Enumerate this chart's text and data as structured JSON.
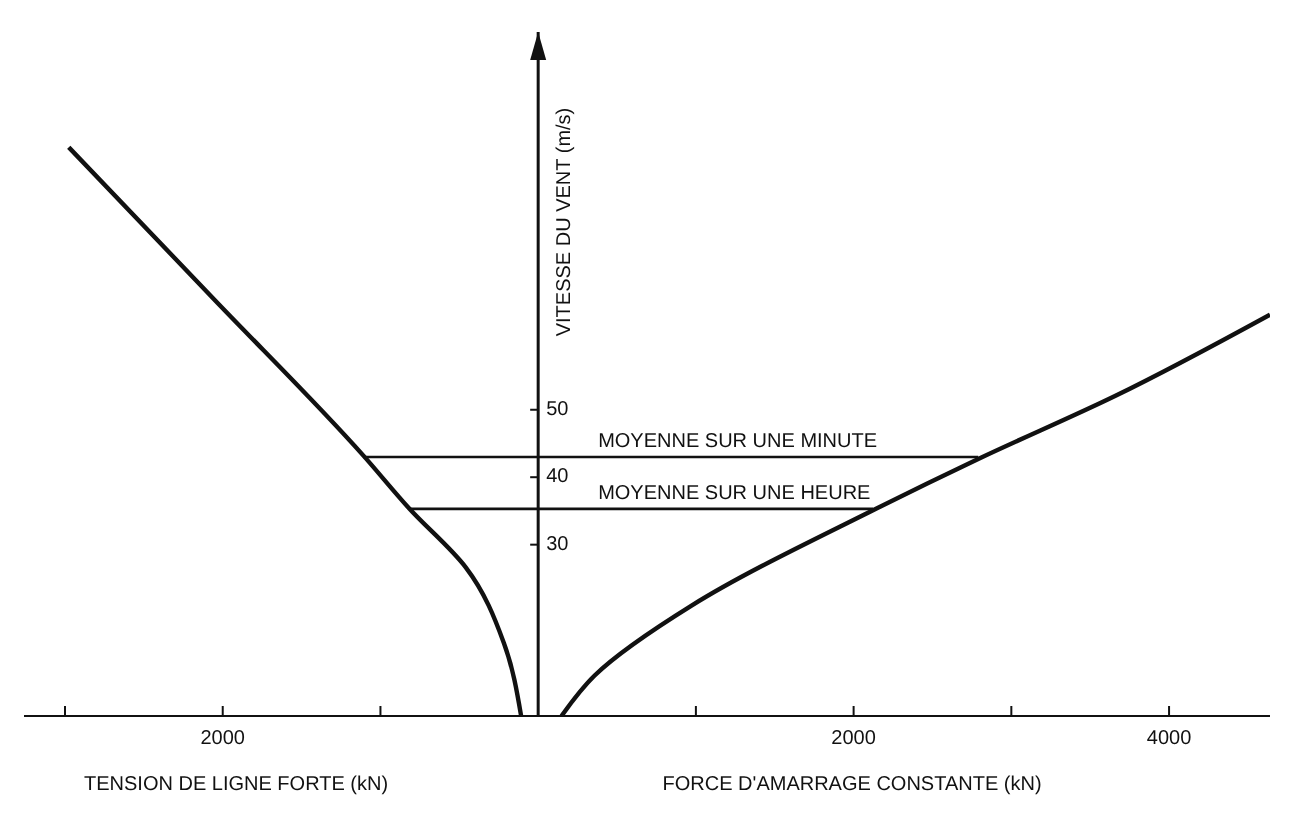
{
  "chart_data": {
    "type": "line",
    "ylabel": "VITESSE DU VENT (m/s)",
    "xlabel": "FORCE D'AMARRAGE CONSTANTE (kN)",
    "annotations": [
      "TENSION DE LIGNE FORTE (kN)"
    ],
    "xlim": [
      -3260,
      4640
    ],
    "xticks": [
      {
        "value": -3000,
        "label": null
      },
      {
        "value": -2000,
        "label": "2000"
      },
      {
        "value": -1000,
        "label": null
      },
      {
        "value": 1000,
        "label": null
      },
      2000,
      {
        "value": 3000,
        "label": null
      },
      4000
    ],
    "ylim": [
      4.6,
      106
    ],
    "yticks": [
      30,
      40,
      50
    ],
    "marker": "none",
    "series": [
      {
        "color": "#111111",
        "x": [
          -2976,
          -2060,
          -1108,
          -819,
          -458,
          -217,
          -108
        ],
        "values": [
          88.9,
          66.5,
          43.2,
          35.4,
          26.6,
          15.4,
          4.6
        ]
      },
      {
        "color": "#111111",
        "x": [
          148,
          358,
          975,
          2123,
          2790,
          3654,
          4640
        ],
        "values": [
          4.6,
          10.6,
          21.0,
          35.1,
          42.7,
          52.0,
          64.1
        ]
      },
      {
        "name": "MOYENNE SUR UNE MINUTE",
        "color": "#111111",
        "x": [
          -1108,
          2790
        ],
        "values": [
          43,
          43
        ]
      },
      {
        "name": "MOYENNE SUR UNE HEURE",
        "color": "#111111",
        "x": [
          -819,
          2123
        ],
        "values": [
          35.3,
          35.3
        ]
      }
    ]
  }
}
